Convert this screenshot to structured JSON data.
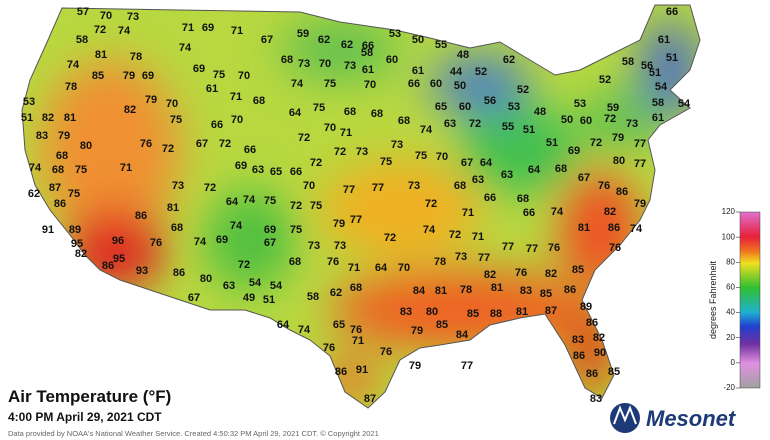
{
  "title": "Air Temperature (°F)",
  "subtitle": "4:00 PM April 29, 2021 CDT",
  "credit": "Data provided by NOAA's National Weather Service. Created 4:50:32 PM April 29, 2021 CDT. © Copyright 2021",
  "brand": "Mesonet",
  "readings": [
    57,
    70,
    73,
    72,
    74,
    58,
    71,
    69,
    71,
    74,
    67,
    59,
    62,
    62,
    66,
    53,
    50,
    55,
    66,
    61,
    48,
    62,
    81,
    78,
    74,
    85,
    79,
    69,
    69,
    75,
    70,
    68,
    73,
    70,
    73,
    58,
    61,
    60,
    61,
    44,
    52,
    58,
    56,
    51,
    52,
    51,
    78,
    82,
    79,
    70,
    61,
    71,
    68,
    53,
    74,
    75,
    70,
    66,
    60,
    50,
    56,
    52,
    53,
    48,
    54,
    58,
    54,
    53,
    59,
    51,
    82,
    81,
    75,
    66,
    70,
    64,
    75,
    68,
    68,
    65,
    60,
    68,
    74,
    63,
    72,
    55,
    51,
    50,
    60,
    72,
    73,
    61,
    83,
    79,
    80,
    68,
    76,
    72,
    67,
    72,
    66,
    72,
    70,
    71,
    72,
    73,
    75,
    73,
    75,
    70,
    67,
    64,
    51,
    69,
    72,
    79,
    77,
    74,
    68,
    75,
    71,
    69,
    63,
    65,
    66,
    72,
    80,
    77,
    68,
    63,
    63,
    64,
    68,
    67,
    62,
    87,
    75,
    73,
    72,
    70,
    77,
    77,
    73,
    76,
    86,
    66,
    86,
    81,
    64,
    74,
    75,
    72,
    75,
    72,
    68,
    74,
    82,
    79,
    71,
    66,
    91,
    89,
    86,
    68,
    74,
    69,
    75,
    79,
    77,
    81,
    86,
    74,
    95,
    96,
    76,
    74,
    69,
    67,
    73,
    73,
    72,
    74,
    72,
    71,
    77,
    77,
    76,
    76,
    82,
    86,
    95,
    72,
    68,
    76,
    71,
    64,
    70,
    78,
    73,
    77,
    82,
    76,
    82,
    85,
    93,
    86,
    80,
    63,
    54,
    54,
    58,
    62,
    68,
    84,
    81,
    78,
    81,
    83,
    86,
    67,
    49,
    51,
    83,
    80,
    85,
    88,
    81,
    85,
    87,
    89,
    64,
    74,
    65,
    76,
    79,
    85,
    84,
    86,
    82,
    76,
    71,
    76,
    83,
    90,
    86,
    79,
    77,
    86,
    91,
    86,
    85,
    87,
    83
  ],
  "colorbar": {
    "label": "degrees Fahrenheit",
    "lim": [
      -20,
      120
    ],
    "ticks": [
      120,
      100,
      80,
      60,
      40,
      20,
      0,
      -20
    ]
  }
}
